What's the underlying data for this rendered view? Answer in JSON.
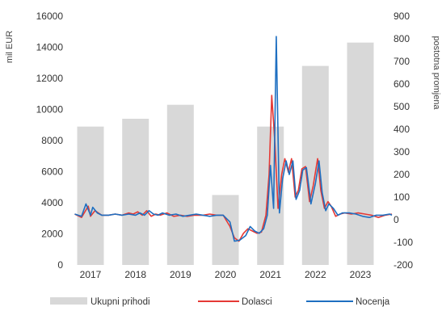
{
  "chart_data": {
    "type": "bar",
    "ylabel_left": "mil EUR",
    "ylabel_right": "postotna promjena",
    "ylim_left": [
      0,
      16000
    ],
    "ylim_right": [
      -200,
      900
    ],
    "left_ticks": [
      "0",
      "2000",
      "4000",
      "6000",
      "8000",
      "10000",
      "12000",
      "14000",
      "16000"
    ],
    "right_ticks": [
      "-200",
      "-100",
      "0",
      "100",
      "200",
      "300",
      "400",
      "500",
      "600",
      "700",
      "800",
      "900"
    ],
    "categories": [
      "2017",
      "2018",
      "2019",
      "2020",
      "2021",
      "2022",
      "2023"
    ],
    "bar_series": {
      "name": "Ukupni prihodi",
      "axis": "left",
      "color": "#d8d8d8",
      "values": [
        8900,
        9400,
        10300,
        4500,
        8900,
        12800,
        14300
      ]
    },
    "line_series": [
      {
        "name": "Dolasci",
        "axis": "right",
        "color": "#e53935",
        "x": [
          2016.65,
          2016.8,
          2016.95,
          2017.0,
          2017.1,
          2017.25,
          2017.4,
          2017.55,
          2017.7,
          2017.85,
          2017.95,
          2018.05,
          2018.15,
          2018.25,
          2018.35,
          2018.45,
          2018.55,
          2018.7,
          2018.85,
          2019.0,
          2019.15,
          2019.3,
          2019.5,
          2019.65,
          2019.8,
          2019.95,
          2020.1,
          2020.2,
          2020.3,
          2020.4,
          2020.5,
          2020.6,
          2020.7,
          2020.8,
          2020.9,
          2020.97,
          2021.03,
          2021.1,
          2021.17,
          2021.25,
          2021.32,
          2021.4,
          2021.47,
          2021.55,
          2021.62,
          2021.7,
          2021.78,
          2021.87,
          2021.95,
          2022.05,
          2022.12,
          2022.2,
          2022.28,
          2022.35,
          2022.45,
          2022.55,
          2022.65,
          2022.8,
          2022.95,
          2023.1,
          2023.25,
          2023.4,
          2023.55,
          2023.7
        ],
        "y": [
          25,
          10,
          60,
          15,
          40,
          20,
          20,
          25,
          20,
          30,
          25,
          35,
          20,
          40,
          15,
          25,
          20,
          30,
          15,
          20,
          15,
          20,
          20,
          25,
          20,
          20,
          -30,
          -80,
          -95,
          -60,
          -40,
          -50,
          -60,
          -55,
          20,
          200,
          550,
          340,
          50,
          200,
          270,
          210,
          270,
          100,
          130,
          225,
          235,
          80,
          150,
          270,
          130,
          50,
          80,
          60,
          15,
          25,
          30,
          25,
          30,
          25,
          20,
          10,
          20,
          25
        ]
      },
      {
        "name": "Nocenja",
        "axis": "right",
        "color": "#1e6fc1",
        "x": [
          2016.65,
          2016.8,
          2016.9,
          2017.0,
          2017.05,
          2017.15,
          2017.25,
          2017.4,
          2017.55,
          2017.7,
          2017.85,
          2018.0,
          2018.1,
          2018.2,
          2018.3,
          2018.4,
          2018.5,
          2018.6,
          2018.75,
          2018.9,
          2019.05,
          2019.2,
          2019.35,
          2019.5,
          2019.65,
          2019.8,
          2019.95,
          2020.1,
          2020.2,
          2020.32,
          2020.45,
          2020.55,
          2020.65,
          2020.75,
          2020.85,
          2020.93,
          2021.0,
          2021.07,
          2021.13,
          2021.2,
          2021.27,
          2021.35,
          2021.42,
          2021.5,
          2021.57,
          2021.65,
          2021.72,
          2021.8,
          2021.9,
          2022.0,
          2022.08,
          2022.15,
          2022.23,
          2022.3,
          2022.4,
          2022.5,
          2022.6,
          2022.75,
          2022.9,
          2023.05,
          2023.2,
          2023.35,
          2023.5,
          2023.65,
          2023.7
        ],
        "y": [
          25,
          15,
          70,
          20,
          55,
          30,
          20,
          20,
          25,
          20,
          25,
          20,
          30,
          20,
          40,
          25,
          20,
          30,
          20,
          25,
          15,
          20,
          25,
          20,
          15,
          20,
          20,
          -10,
          -95,
          -90,
          -70,
          -30,
          -50,
          -60,
          -40,
          20,
          240,
          50,
          810,
          30,
          180,
          260,
          200,
          260,
          90,
          130,
          220,
          230,
          70,
          160,
          260,
          120,
          40,
          70,
          50,
          20,
          30,
          30,
          25,
          15,
          10,
          20,
          20,
          25,
          20
        ]
      }
    ],
    "legend": [
      "Ukupni prihodi",
      "Dolasci",
      "Nocenja"
    ],
    "legend_placement": "bottom",
    "grid": false
  }
}
